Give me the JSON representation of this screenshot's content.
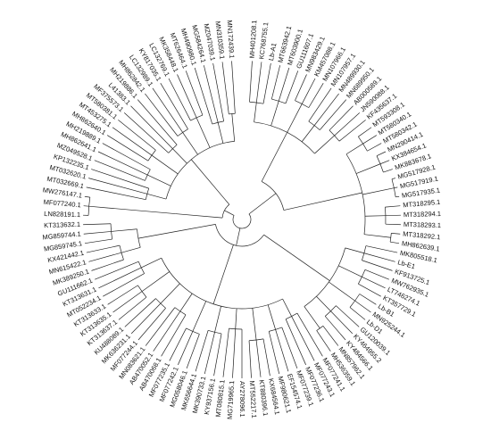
{
  "tree": {
    "line_color": "#222222",
    "label_color": "#111111",
    "background": "#ffffff",
    "clades": [
      {
        "id": "A",
        "leaves": [
          "MH401208.1",
          "KC768755.1",
          "Lb-A1",
          "MT663942.1",
          "MT603900.1",
          "GU111607.1",
          "MN983429.1",
          "KM457088.1",
          "MN107966.1",
          "MN107957.1",
          "MN489930.1",
          "MN689950.1",
          "AB000589.1",
          "JN590088.1",
          "KF435637.1"
        ]
      },
      {
        "id": "B",
        "leaves": [
          "MT593308.1",
          "MT580340.1",
          "MT580342.1",
          "MN290414.1",
          "KX384654.1",
          "MK883678.1",
          "MG517928.1",
          "MG517919.1",
          "MG517935.1",
          "MT318295.1",
          "MT318294.1",
          "MT318293.1",
          "MT318292.1",
          "MH862639.1"
        ]
      },
      {
        "id": "C",
        "leaves": [
          "MK805518.1",
          "Lb-E1",
          "KF913725.1",
          "MW762935.1",
          "LT746274.1",
          "KT357729.1",
          "Lb-B1",
          "MN925244.1",
          "Lb-D1",
          "GU120039.1",
          "KY464955.2",
          "KY484566.1",
          "MN857962.1",
          "MH536359.1"
        ]
      },
      {
        "id": "D",
        "leaves": [
          "MF077241.1",
          "MF077243.1",
          "MF077236.1",
          "MF077239.1",
          "EF154574.1",
          "MF980621.1",
          "KX684564.1",
          "KT880396.1",
          "MT552217.1",
          "AY278096.1",
          "MG719965.1",
          "MT080815.1",
          "KY937156.1",
          "MK390733.1",
          "MK656644.1",
          "MG058046.1",
          "MF077242.1",
          "MF077235.1",
          "AB470068.1",
          "AB470052.1",
          "MN083621.1",
          "MF077244.1",
          "MK636231.1",
          "KU488089.1",
          "KT313637.1",
          "KT313635.1",
          "KT313633.1",
          "MT052234.1",
          "KT313631.1",
          "GU111662.1"
        ]
      },
      {
        "id": "E",
        "leaves": [
          "MK389250.1",
          "MN615422.1",
          "KX421442.1",
          "MG859745.1",
          "MG859744.1",
          "KT313632.1"
        ]
      },
      {
        "id": "F",
        "leaves": [
          "LN828191.1",
          "MF077240.1",
          "MW276147.1"
        ]
      },
      {
        "id": "G",
        "leaves": [
          "MT032669.1",
          "MT032620.1",
          "KP132235.1",
          "MZ049528.1",
          "MH862641.1",
          "MH219889.1",
          "MH862640.1",
          "MT453275.1",
          "MT580381.1",
          "MF375573.1",
          "L41383.1",
          "MH219886.1",
          "MH862842.1",
          "LC132989.1",
          "KY817035.1",
          "LC132769.1",
          "MK358448.1",
          "MT626464.1",
          "MH490980.1",
          "MG584264.1",
          "MZ047039.1",
          "MN310359.1",
          "MN172439.1"
        ]
      }
    ]
  }
}
